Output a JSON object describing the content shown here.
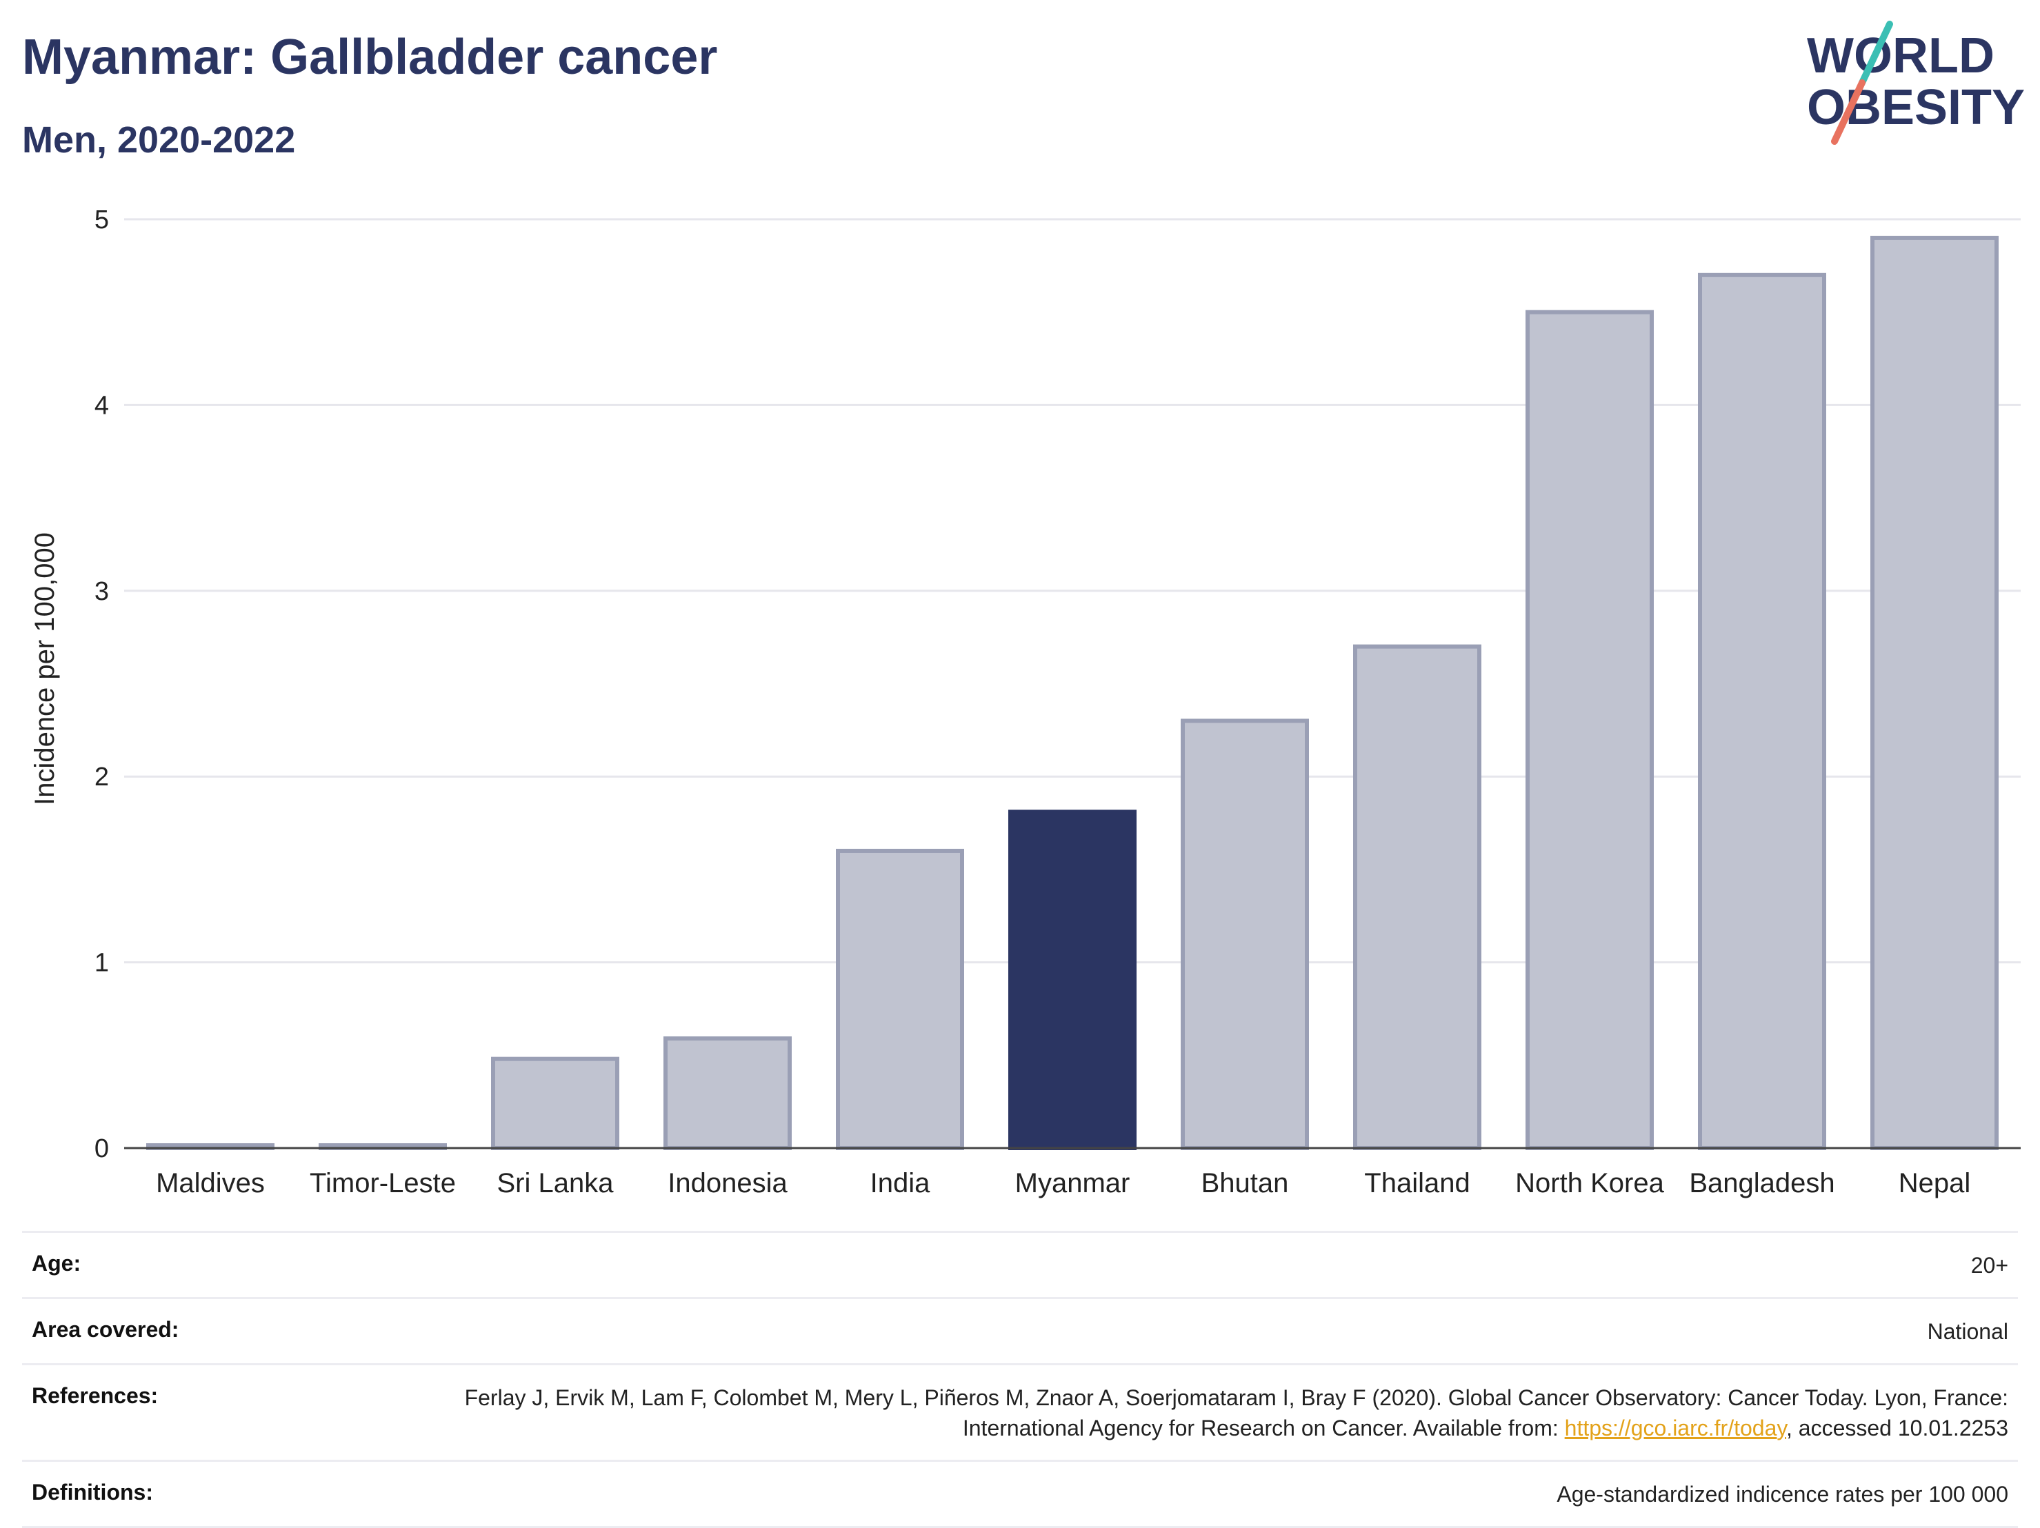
{
  "title": "Myanmar: Gallbladder cancer",
  "subtitle": "Men, 2020-2022",
  "logo": {
    "line1": "WORLD",
    "line2": "OBESITY",
    "accent_teal": "#3bbfb4",
    "accent_coral": "#e8725f",
    "text_color": "#2b3562"
  },
  "colors": {
    "highlight": "#2b3562",
    "bar": "#c0c3d0",
    "bar_stroke": "#9a9fb5",
    "grid": "#e6e6ec",
    "axis": "#444444"
  },
  "chart_data": {
    "type": "bar",
    "categories": [
      "Maldives",
      "Timor-Leste",
      "Sri Lanka",
      "Indonesia",
      "India",
      "Myanmar",
      "Bhutan",
      "Thailand",
      "North Korea",
      "Bangladesh",
      "Nepal"
    ],
    "values": [
      0.0,
      0.0,
      0.48,
      0.59,
      1.6,
      1.81,
      2.3,
      2.7,
      4.5,
      4.7,
      4.9
    ],
    "highlight": "Myanmar",
    "ylabel": "Incidence per 100,000",
    "ylim": [
      0,
      5
    ],
    "yticks": [
      0,
      1,
      2,
      3,
      4,
      5
    ],
    "grid": true
  },
  "info": {
    "age": {
      "label": "Age:",
      "value": "20+"
    },
    "area": {
      "label": "Area covered:",
      "value": "National"
    },
    "references": {
      "label": "References:",
      "text_before": "Ferlay J, Ervik M, Lam F, Colombet M, Mery L, Piñeros M, Znaor A, Soerjomataram I, Bray F (2020). Global Cancer Observatory: Cancer Today. Lyon, France: International Agency for Research on Cancer. Available from: ",
      "link": "https://gco.iarc.fr/today",
      "text_after": ", accessed 10.01.2253"
    },
    "definitions": {
      "label": "Definitions:",
      "value": "Age-standardized indicence rates per 100 000"
    }
  }
}
